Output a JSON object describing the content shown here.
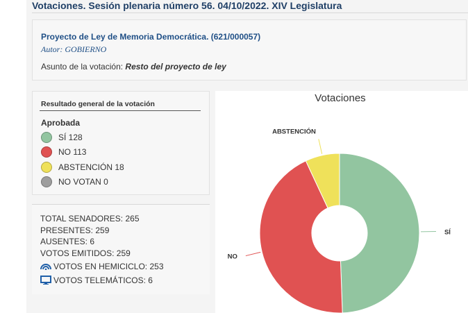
{
  "header": {
    "title": "Votaciones. Sesión plenaria número 56. 04/10/2022. XIV  Legislatura"
  },
  "project": {
    "name": "Proyecto de Ley de Memoria Democrática. (621/000057)",
    "author": "Autor: GOBIERNO",
    "subject_label": "Asunto de la votación:",
    "subject_value": "Resto del proyecto de ley"
  },
  "result": {
    "heading": "Resultado general de la votación",
    "status": "Aprobada",
    "items": [
      {
        "label": "SÍ 128",
        "color": "#92c5a0"
      },
      {
        "label": "NO 113",
        "color": "#e05252"
      },
      {
        "label": "ABSTENCIÓN 18",
        "color": "#efe15a"
      },
      {
        "label": "NO VOTAN 0",
        "color": "#9e9e9e"
      }
    ]
  },
  "totals": {
    "senadores": "TOTAL SENADORES: 265",
    "presentes": "PRESENTES: 259",
    "ausentes": "AUSENTES: 6",
    "emitidos": "VOTOS EMITIDOS: 259",
    "hemiciclo": "VOTOS EN HEMICICLO: 253",
    "telematicos": "VOTOS TELEMÁTICOS: 6",
    "icon_hemiciclo": "hemicycle-icon",
    "icon_telematicos": "monitor-icon"
  },
  "chart_data": {
    "type": "pie",
    "title": "Votaciones",
    "donut": true,
    "slices": [
      {
        "label": "SÍ",
        "value": 128,
        "color": "#92c5a0"
      },
      {
        "label": "NO",
        "value": 113,
        "color": "#e05252"
      },
      {
        "label": "ABSTENCIÓN",
        "value": 18,
        "color": "#efe15a"
      }
    ]
  }
}
